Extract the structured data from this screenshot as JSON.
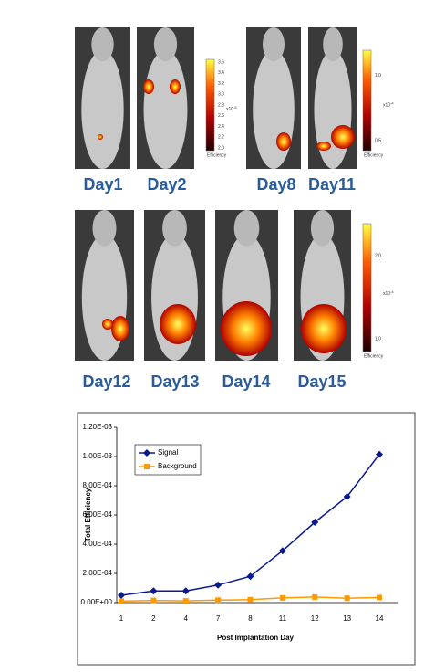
{
  "figure": {
    "row1_labels": [
      "Day1",
      "Day2",
      "Day8",
      "Day11"
    ],
    "row2_labels": [
      "Day12",
      "Day13",
      "Day14",
      "Day15"
    ],
    "colorbars": [
      {
        "ticks": [
          "3.6",
          "3.4",
          "3.2",
          "3.0",
          "2.8",
          "2.6",
          "2.4",
          "2.2",
          "2.0"
        ],
        "unit": "x10",
        "exp": "-5",
        "label": "Efficiency"
      },
      {
        "ticks": [
          "1.0",
          "0.5"
        ],
        "unit": "x10",
        "exp": "-4",
        "label": "Efficiency"
      },
      {
        "ticks": [
          "2.0",
          "1.0"
        ],
        "unit": "x10",
        "exp": "-4",
        "label": "Efficiency"
      }
    ]
  },
  "chart_data": {
    "type": "line",
    "x_label": "Post Implantation Day",
    "y_label": "Total Efficiency",
    "categories": [
      "1",
      "2",
      "4",
      "7",
      "8",
      "11",
      "12",
      "13",
      "14"
    ],
    "series": [
      {
        "name": "Signal",
        "color": "#0a1a8c",
        "marker": "diamond",
        "values": [
          5e-05,
          8e-05,
          8e-05,
          0.00012,
          0.00018,
          0.000355,
          0.00055,
          0.000725,
          0.001015
        ]
      },
      {
        "name": "Background",
        "color": "#ff9900",
        "marker": "square",
        "values": [
          1e-05,
          1.5e-05,
          1.2e-05,
          1.7e-05,
          2e-05,
          3.2e-05,
          3.8e-05,
          3e-05,
          3.5e-05
        ]
      }
    ],
    "ylim": [
      0,
      0.0012
    ],
    "yticks": [
      {
        "value": 0,
        "label": "0.00E+00"
      },
      {
        "value": 0.0002,
        "label": "2.00E-04"
      },
      {
        "value": 0.0004,
        "label": "4.00E-04"
      },
      {
        "value": 0.0006,
        "label": "6.00E-04"
      },
      {
        "value": 0.0008,
        "label": "8.00E-04"
      },
      {
        "value": 0.001,
        "label": "1.00E-03"
      },
      {
        "value": 0.0012,
        "label": "1.20E-03"
      }
    ],
    "legend": "upper left",
    "grid": false
  }
}
